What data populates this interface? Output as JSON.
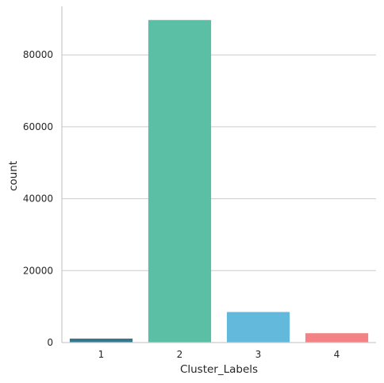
{
  "chart_data": {
    "type": "bar",
    "title": "",
    "xlabel": "Cluster_Labels",
    "ylabel": "count",
    "categories": [
      "1",
      "2",
      "3",
      "4"
    ],
    "values": [
      1100,
      89700,
      8500,
      2600
    ],
    "colors": [
      "#35788e",
      "#5bbfa5",
      "#63b9dc",
      "#f28285"
    ],
    "ylim": [
      0,
      93500
    ],
    "yticks": [
      0,
      20000,
      40000,
      60000,
      80000
    ],
    "ytick_labels": [
      "0",
      "20000",
      "40000",
      "60000",
      "80000"
    ],
    "grid": "horizontal",
    "legend": "none"
  }
}
